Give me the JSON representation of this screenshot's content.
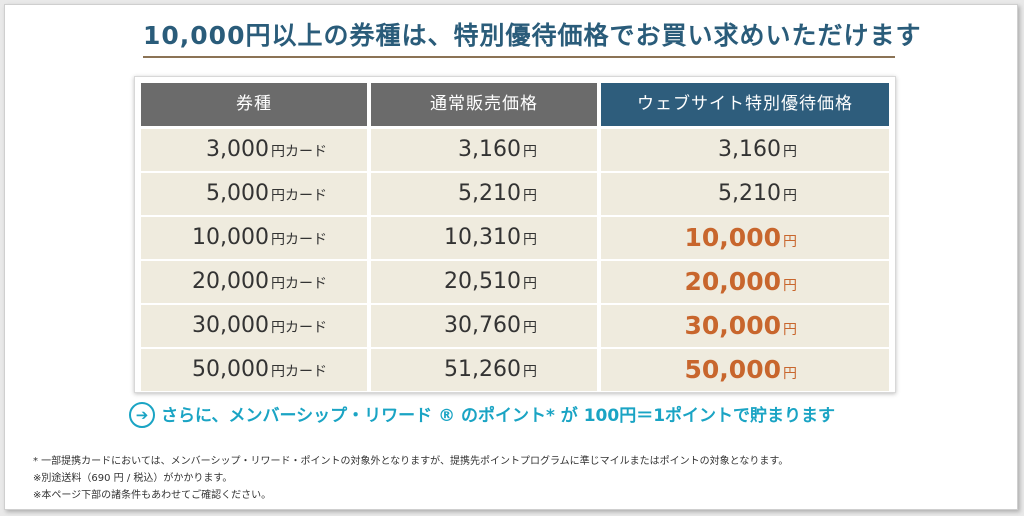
{
  "headline": "10,000円以上の券種は、特別優待価格でお買い求めいただけます",
  "table": {
    "headers": [
      "券種",
      "通常販売価格",
      "ウェブサイト特別優待価格"
    ],
    "rows": [
      {
        "card_amount": "3,000",
        "card_suffix": "円カード",
        "regular": "3,160",
        "special": "3,160",
        "discounted": false
      },
      {
        "card_amount": "5,000",
        "card_suffix": "円カード",
        "regular": "5,210",
        "special": "5,210",
        "discounted": false
      },
      {
        "card_amount": "10,000",
        "card_suffix": "円カード",
        "regular": "10,310",
        "special": "10,000",
        "discounted": true
      },
      {
        "card_amount": "20,000",
        "card_suffix": "円カード",
        "regular": "20,510",
        "special": "20,000",
        "discounted": true
      },
      {
        "card_amount": "30,000",
        "card_suffix": "円カード",
        "regular": "30,760",
        "special": "30,000",
        "discounted": true
      },
      {
        "card_amount": "50,000",
        "card_suffix": "円カード",
        "regular": "51,260",
        "special": "50,000",
        "discounted": true
      }
    ],
    "yen_unit": "円"
  },
  "points_note": {
    "icon": "arrow-right-circle-icon",
    "text": "さらに、メンバーシップ・リワード ® のポイント* が 100円＝1ポイントで貯まります"
  },
  "footnotes": [
    "* 一部提携カードにおいては、メンバーシップ・リワード・ポイントの対象外となりますが、提携先ポイントプログラムに準じマイルまたはポイントの対象となります。",
    "※別途送料（690 円 / 税込）がかかります。",
    "※本ページ下部の諸条件もあわせてご確認ください。"
  ],
  "colors": {
    "headline": "#2a5c7a",
    "header_gray": "#6b6b6b",
    "header_blue": "#2e5d7c",
    "cell_bg": "#efebde",
    "special_price": "#c8662d",
    "points_text": "#1aa4c4"
  }
}
